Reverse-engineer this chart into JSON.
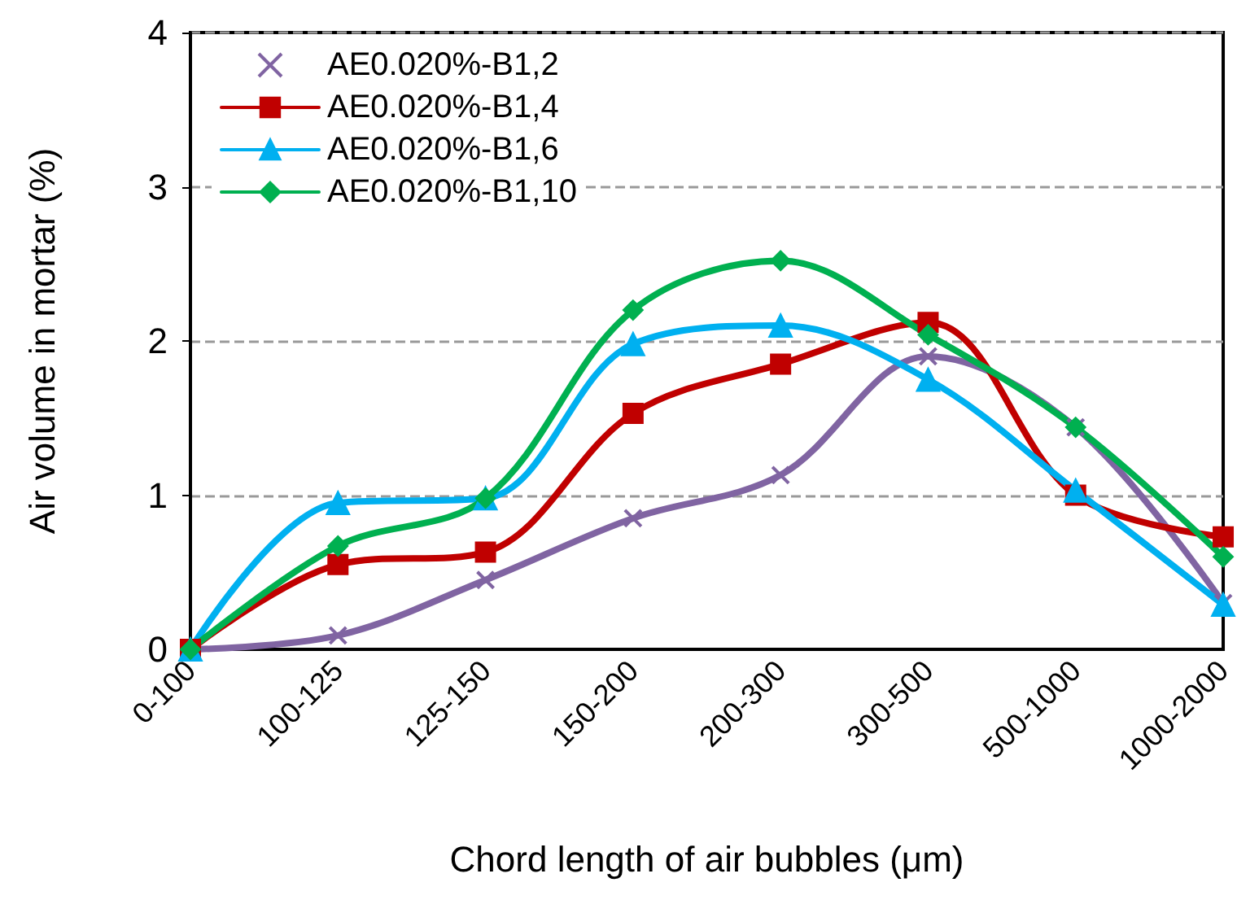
{
  "chart_data": {
    "type": "line",
    "xlabel": "Chord length of air bubbles (μm)",
    "ylabel": "Air volume in mortar (%)",
    "categories": [
      "0-100",
      "100-125",
      "125-150",
      "150-200",
      "200-300",
      "300-500",
      "500-1000",
      "1000-2000"
    ],
    "series": [
      {
        "name": "AE0.020%-B1,2",
        "color": "#8064a2",
        "marker": "cross",
        "values": [
          0,
          0.09,
          0.45,
          0.85,
          1.13,
          1.9,
          1.44,
          0.3
        ]
      },
      {
        "name": "AE0.020%-B1,4",
        "color": "#c00000",
        "marker": "square",
        "values": [
          0,
          0.55,
          0.63,
          1.53,
          1.85,
          2.12,
          1.0,
          0.73
        ]
      },
      {
        "name": "AE0.020%-B1,6",
        "color": "#00b0f0",
        "marker": "triangle",
        "values": [
          0,
          0.95,
          0.98,
          1.98,
          2.1,
          1.75,
          1.03,
          0.29
        ]
      },
      {
        "name": "AE0.020%-B1,10",
        "color": "#00b050",
        "marker": "diamond",
        "values": [
          0,
          0.67,
          0.98,
          2.2,
          2.52,
          2.04,
          1.44,
          0.6
        ]
      }
    ],
    "ylim": [
      0,
      4
    ],
    "yticks": [
      0,
      1,
      2,
      3,
      4
    ],
    "grid": "y",
    "legend": "top left",
    "line_style": "solid"
  }
}
